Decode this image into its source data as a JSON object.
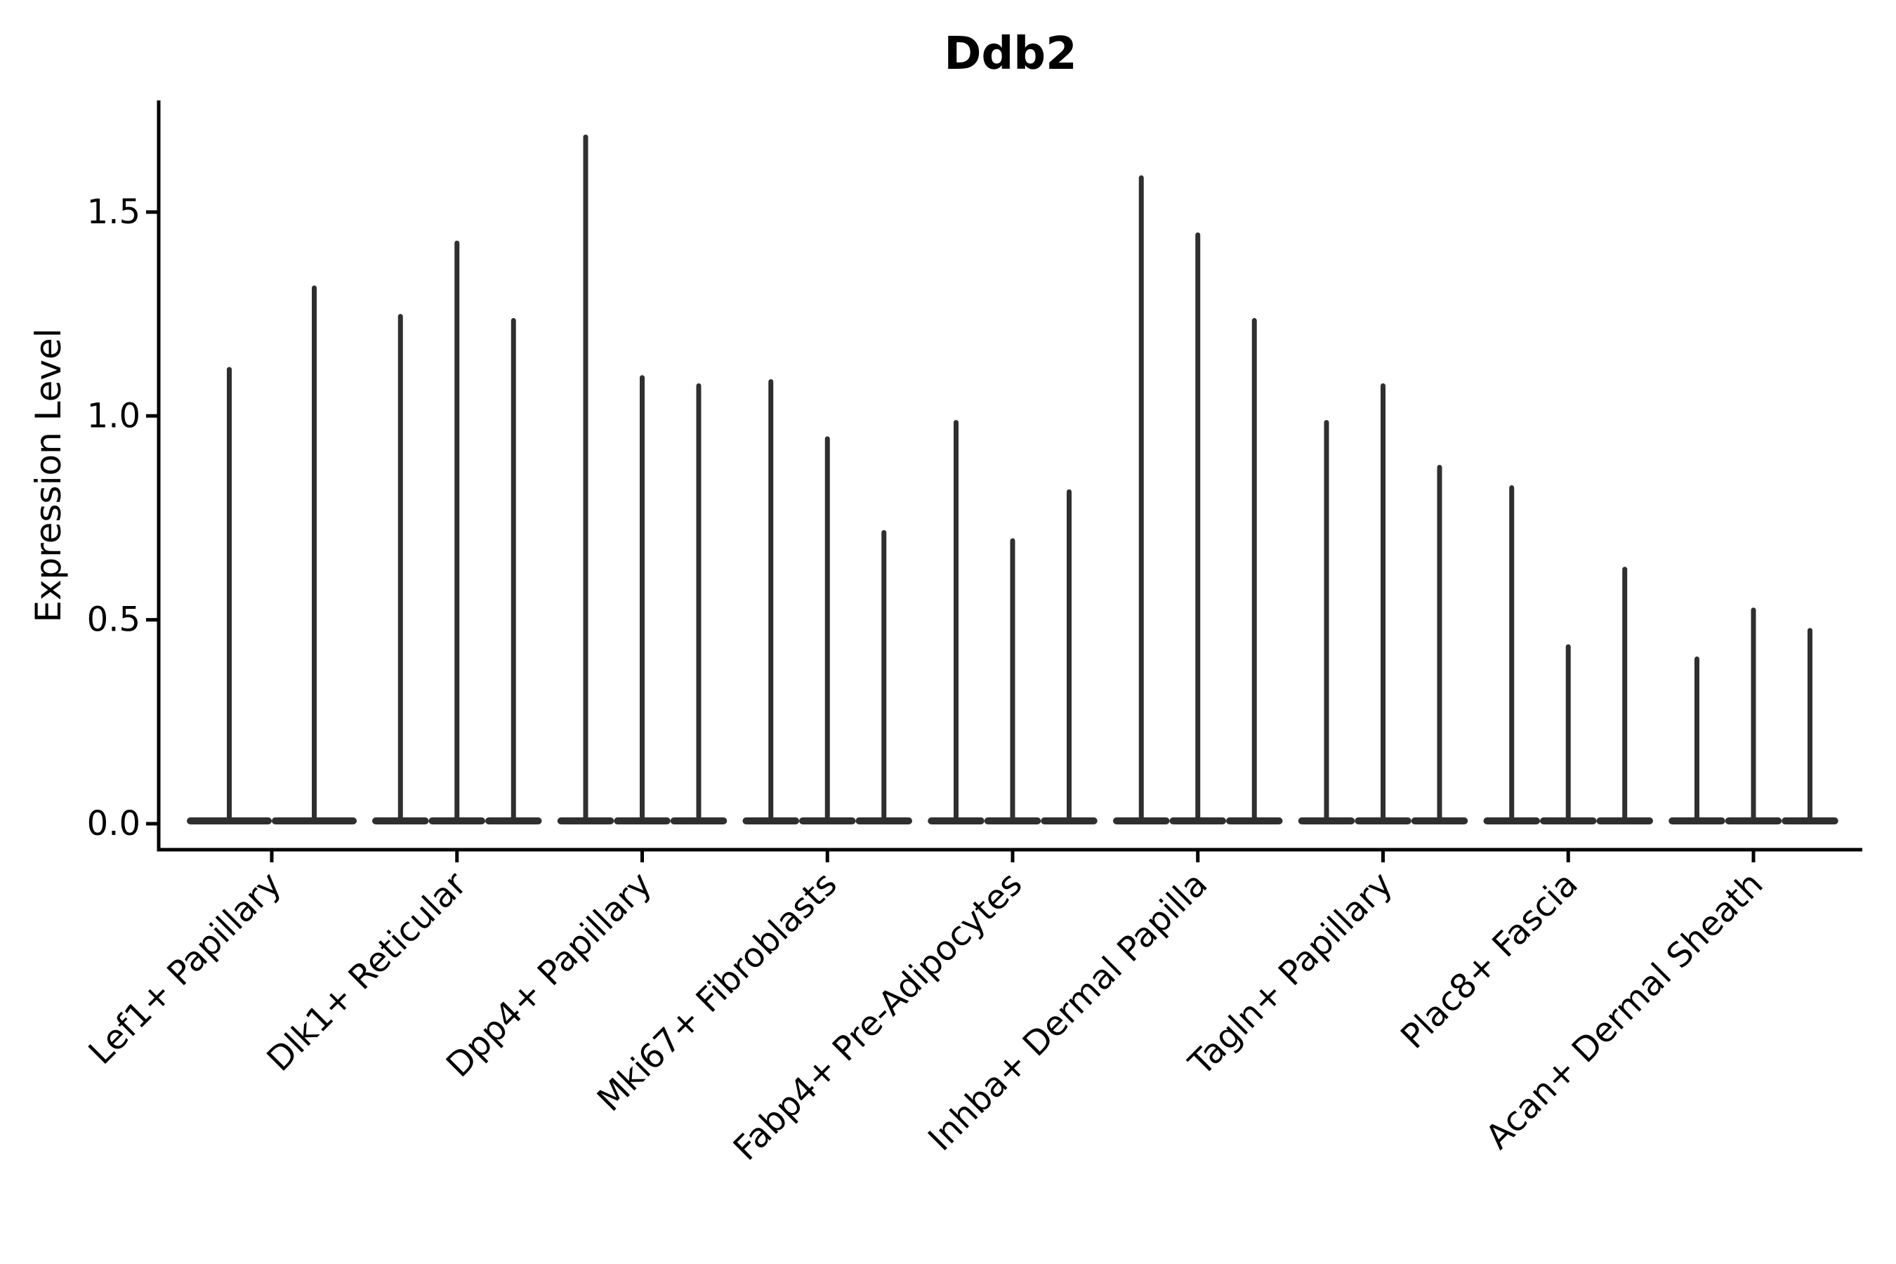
{
  "title": "Ddb2",
  "axes": {
    "y_label": "Expression Level",
    "y_tick_labels": [
      "0.0",
      "0.5",
      "1.0",
      "1.5"
    ]
  },
  "colors": {
    "violin_fill": "#2f2f2f",
    "axis": "#000000",
    "text": "#000000",
    "background": "#ffffff"
  },
  "chart_data": {
    "type": "violin",
    "title": "Ddb2",
    "xlabel": "",
    "ylabel": "Expression Level",
    "ylim": [
      -0.06,
      1.77
    ],
    "yticks": [
      0,
      0.5,
      1.0,
      1.5
    ],
    "ytick_labels": [
      "0.0",
      "0.5",
      "1.0",
      "1.5"
    ],
    "grid": false,
    "legend_position": "none",
    "categories": [
      "Lef1+ Papillary",
      "Dlk1+ Reticular",
      "Dpp4+ Papillary",
      "Mki67+ Fibroblasts",
      "Fabp4+ Pre-Adipocytes",
      "Inhba+ Dermal Papilla",
      "Tagln+ Papillary",
      "Plac8+ Fascia",
      "Acan+ Dermal Sheath"
    ],
    "series": [
      {
        "category": "Lef1+ Papillary",
        "violin_max_expression": [
          1.12,
          1.32
        ]
      },
      {
        "category": "Dlk1+ Reticular",
        "violin_max_expression": [
          1.25,
          1.43,
          1.24
        ]
      },
      {
        "category": "Dpp4+ Papillary",
        "violin_max_expression": [
          1.69,
          1.1,
          1.08
        ]
      },
      {
        "category": "Mki67+ Fibroblasts",
        "violin_max_expression": [
          1.09,
          0.95,
          0.72
        ]
      },
      {
        "category": "Fabp4+ Pre-Adipocytes",
        "violin_max_expression": [
          0.99,
          0.7,
          0.82
        ]
      },
      {
        "category": "Inhba+ Dermal Papilla",
        "violin_max_expression": [
          1.59,
          1.45,
          1.24
        ]
      },
      {
        "category": "Tagln+ Papillary",
        "violin_max_expression": [
          0.99,
          1.08,
          0.88
        ]
      },
      {
        "category": "Plac8+ Fascia",
        "violin_max_expression": [
          0.83,
          0.44,
          0.63
        ]
      },
      {
        "category": "Acan+ Dermal Sheath",
        "violin_max_expression": [
          0.41,
          0.53,
          0.48
        ]
      }
    ],
    "description": "Violin plot of Ddb2 expression level per fibroblast subtype; density is concentrated at 0 with thin spikes reaching each violin's maximum expression."
  }
}
